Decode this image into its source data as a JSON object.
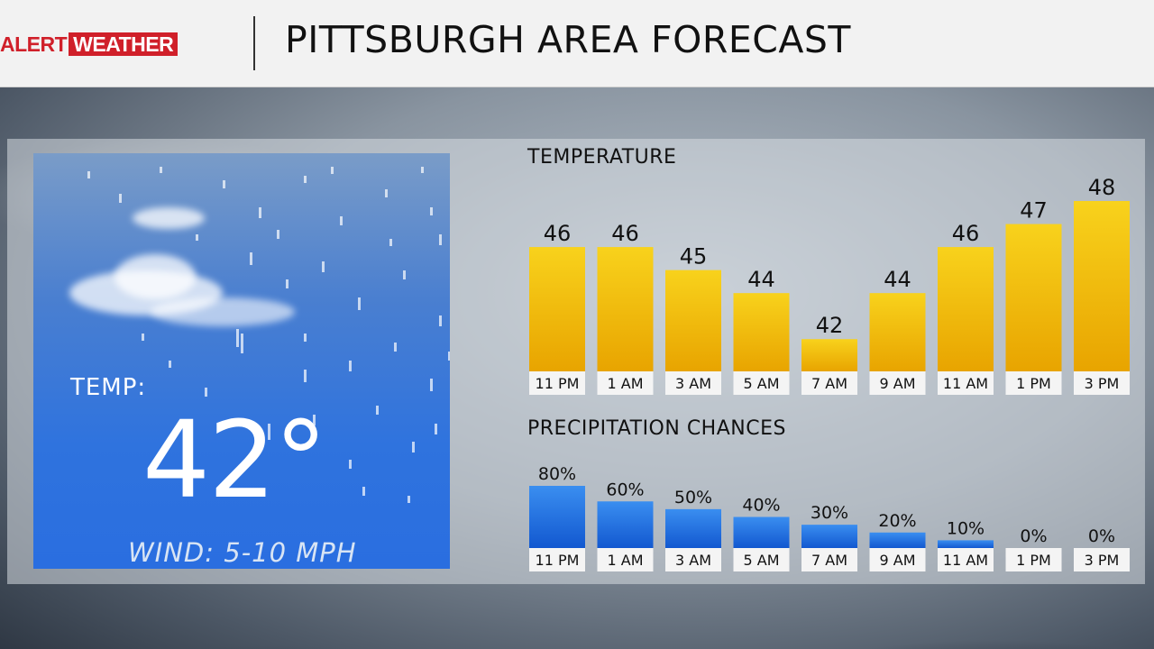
{
  "header": {
    "logo_alert": "ALERT",
    "logo_weather": "WEATHER",
    "title": "PITTSBURGH AREA FORECAST"
  },
  "current": {
    "temp_label": "TEMP:",
    "temp_value": "42°",
    "wind": "WIND:  5-10 MPH"
  },
  "colors": {
    "temp_bar_top": "#f8d21c",
    "temp_bar_bottom": "#e8a400",
    "precip_bar_top": "#3a8ef0",
    "precip_bar_bottom": "#1258d0",
    "brand_red": "#d0202a"
  },
  "chart_data": [
    {
      "type": "bar",
      "title": "TEMPERATURE",
      "categories": [
        "11 PM",
        "1 AM",
        "3 AM",
        "5 AM",
        "7 AM",
        "9 AM",
        "11 AM",
        "1 PM",
        "3 PM"
      ],
      "values": [
        46,
        46,
        45,
        44,
        42,
        44,
        46,
        47,
        48
      ],
      "value_labels": [
        "46",
        "46",
        "45",
        "44",
        "42",
        "44",
        "46",
        "47",
        "48"
      ],
      "xlabel": "",
      "ylabel": "",
      "ylim": [
        40.6,
        48
      ]
    },
    {
      "type": "bar",
      "title": "PRECIPITATION CHANCES",
      "categories": [
        "11 PM",
        "1 AM",
        "3 AM",
        "5 AM",
        "7 AM",
        "9 AM",
        "11 AM",
        "1 PM",
        "3 PM"
      ],
      "values": [
        80,
        60,
        50,
        40,
        30,
        20,
        10,
        0,
        0
      ],
      "value_labels": [
        "80%",
        "60%",
        "50%",
        "40%",
        "30%",
        "20%",
        "10%",
        "0%",
        "0%"
      ],
      "xlabel": "",
      "ylabel": "",
      "ylim": [
        0,
        80
      ]
    }
  ]
}
